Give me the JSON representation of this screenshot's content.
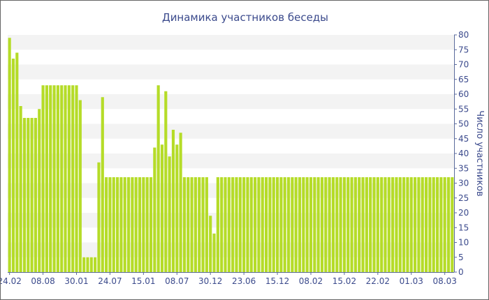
{
  "chart_data": {
    "type": "bar",
    "title": "Динамика участников беседы",
    "xlabel": "",
    "ylabel": "Число участников",
    "ylim": [
      0,
      80
    ],
    "y_ticks": [
      0,
      5,
      10,
      15,
      20,
      25,
      30,
      35,
      40,
      45,
      50,
      55,
      60,
      65,
      70,
      75,
      80
    ],
    "y_axis_position": "right",
    "grid": "horizontal bands",
    "legend": "none",
    "x_tick_labels": [
      {
        "index": 0,
        "label": "24.02"
      },
      {
        "index": 9,
        "label": "08.08"
      },
      {
        "index": 18,
        "label": "30.01"
      },
      {
        "index": 27,
        "label": "24.07"
      },
      {
        "index": 36,
        "label": "15.01"
      },
      {
        "index": 45,
        "label": "08.07"
      },
      {
        "index": 54,
        "label": "30.12"
      },
      {
        "index": 63,
        "label": "23.06"
      },
      {
        "index": 72,
        "label": "15.12"
      },
      {
        "index": 81,
        "label": "08.02"
      },
      {
        "index": 90,
        "label": "15.02"
      },
      {
        "index": 99,
        "label": "22.02"
      },
      {
        "index": 108,
        "label": "01.03"
      },
      {
        "index": 117,
        "label": "08.03"
      }
    ],
    "series": [
      {
        "values": [
          79,
          72,
          74,
          56,
          52,
          52,
          52,
          52,
          55,
          63,
          63,
          63,
          63,
          63,
          63,
          63,
          63,
          63,
          63,
          58,
          5,
          5,
          5,
          5,
          37,
          59,
          32,
          32,
          32,
          32,
          32,
          32,
          32,
          32,
          32,
          32,
          32,
          32,
          32,
          42,
          63,
          43,
          61,
          39,
          48,
          43,
          47,
          32,
          32,
          32,
          32,
          32,
          32,
          32,
          19,
          13,
          32,
          32,
          32,
          32,
          32,
          32,
          32,
          32,
          32,
          32,
          32,
          32,
          32,
          32,
          32,
          32,
          32,
          32,
          32,
          32,
          32,
          32,
          32,
          32,
          32,
          32,
          32,
          32,
          32,
          32,
          32,
          32,
          32,
          32,
          32,
          32,
          32,
          32,
          32,
          32,
          32,
          32,
          32,
          32,
          32,
          32,
          32,
          32,
          32,
          32,
          32,
          32,
          32,
          32,
          32,
          32,
          32,
          32,
          32,
          32,
          32,
          32,
          32,
          32
        ]
      }
    ]
  },
  "colors": {
    "bar": "#b5dc28",
    "band": "#f3f3f3",
    "title": "#3b4a8c",
    "axis_text": "#3b4a8c",
    "axis_line": "#5a6a9c"
  }
}
